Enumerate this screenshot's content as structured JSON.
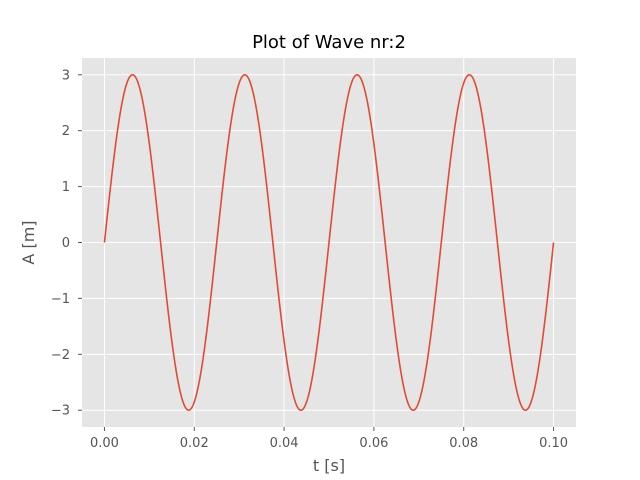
{
  "chart_data": {
    "type": "line",
    "title": "Plot of Wave nr:2",
    "xlabel": "t [s]",
    "ylabel": "A [m]",
    "xlim": [
      -0.005,
      0.105
    ],
    "ylim": [
      -3.3,
      3.3
    ],
    "x_ticks": [
      0.0,
      0.02,
      0.04,
      0.06,
      0.08,
      0.1
    ],
    "x_tick_labels": [
      "0.00",
      "0.02",
      "0.04",
      "0.06",
      "0.08",
      "0.10"
    ],
    "y_ticks": [
      -3,
      -2,
      -1,
      0,
      1,
      2,
      3
    ],
    "y_tick_labels": [
      "−3",
      "−2",
      "−1",
      "0",
      "1",
      "2",
      "3"
    ],
    "grid": true,
    "style": "ggplot",
    "series": [
      {
        "color": "#E24A33",
        "function": "sine",
        "amplitude": 3,
        "frequency_hz": 40,
        "phase": 0,
        "t_start": 0.0,
        "t_end": 0.1
      }
    ]
  },
  "colors": {
    "plot_background": "#E5E5E5",
    "grid": "#FFFFFF",
    "tick_text": "#555555",
    "title_text": "#000000"
  }
}
